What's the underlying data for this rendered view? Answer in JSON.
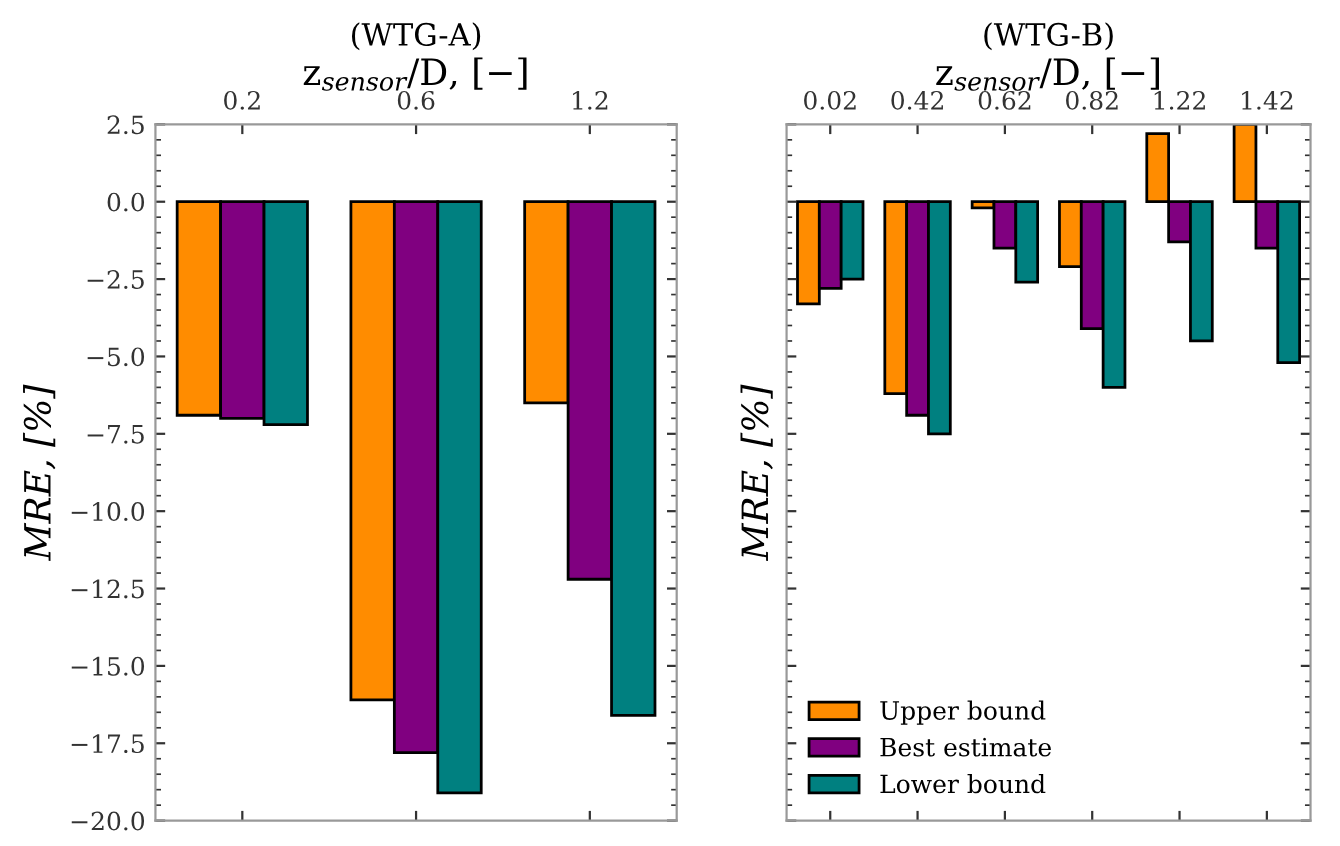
{
  "chart_data": [
    {
      "type": "bar",
      "title": "(WTG-A)",
      "xlabel": "z$_{sensor}$/D, [−]",
      "ylabel": "MRE, [%]",
      "categories": [
        "0.2",
        "0.6",
        "1.2"
      ],
      "series": [
        {
          "color": "#ff8c00",
          "values": [
            -6.9,
            -16.1,
            -6.5
          ]
        },
        {
          "color": "#800080",
          "values": [
            -7.0,
            -17.8,
            -12.2
          ]
        },
        {
          "color": "#008080",
          "values": [
            -7.2,
            -19.1,
            -16.6
          ]
        }
      ],
      "ylim": [
        -20,
        2.5
      ],
      "yticks": [
        {
          "value": -20,
          "label": "−20.0"
        },
        {
          "value": -17.5,
          "label": "−17.5"
        },
        {
          "value": -15,
          "label": "−15.0"
        },
        {
          "value": -12.5,
          "label": "−12.5"
        },
        {
          "value": -10,
          "label": "−10.0"
        },
        {
          "value": -7.5,
          "label": "−7.5"
        },
        {
          "value": -5,
          "label": "−5.0"
        },
        {
          "value": -2.5,
          "label": "−2.5"
        },
        {
          "value": 0,
          "label": "0.0"
        },
        {
          "value": 2.5,
          "label": "2.5"
        }
      ],
      "grid": false,
      "legend": false
    },
    {
      "type": "bar",
      "title": "(WTG-B)",
      "xlabel": "z$_{sensor}$/D, [−]",
      "ylabel": "MRE, [%]",
      "categories": [
        "0.02",
        "0.42",
        "0.62",
        "0.82",
        "1.22",
        "1.42"
      ],
      "series": [
        {
          "name": "Upper bound",
          "color": "#ff8c00",
          "values": [
            -3.3,
            -6.2,
            -0.2,
            -2.1,
            2.2,
            2.5
          ]
        },
        {
          "name": "Best estimate",
          "color": "#800080",
          "values": [
            -2.8,
            -6.9,
            -1.5,
            -4.1,
            -1.3,
            -1.5
          ]
        },
        {
          "name": "Lower bound",
          "color": "#008080",
          "values": [
            -2.5,
            -7.5,
            -2.6,
            -6.0,
            -4.5,
            -5.2
          ]
        }
      ],
      "ylim": [
        -20,
        2.5
      ],
      "yticks": [
        {
          "value": -20,
          "label": null
        },
        {
          "value": -17.5,
          "label": null
        },
        {
          "value": -15,
          "label": null
        },
        {
          "value": -12.5,
          "label": null
        },
        {
          "value": -10,
          "label": null
        },
        {
          "value": -7.5,
          "label": null
        },
        {
          "value": -5,
          "label": null
        },
        {
          "value": -2.5,
          "label": null
        },
        {
          "value": 0,
          "label": null
        },
        {
          "value": 2.5,
          "label": null
        }
      ],
      "tick_labels": "x",
      "grid": false,
      "legend": "bottom left"
    }
  ]
}
